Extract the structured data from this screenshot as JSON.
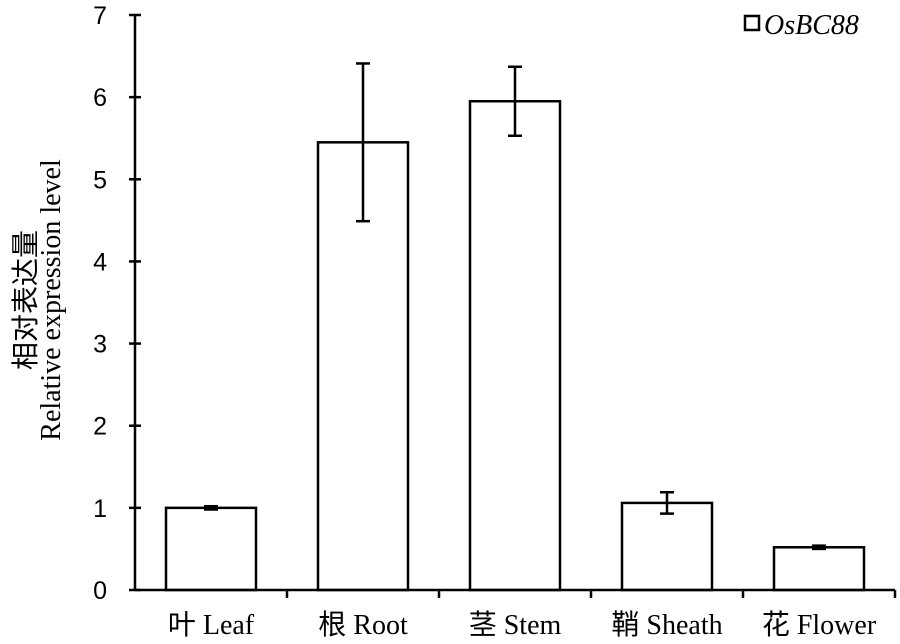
{
  "chart_data": {
    "type": "bar",
    "categories": [
      "叶 Leaf",
      "根 Root",
      "茎 Stem",
      "鞘 Sheath",
      "花 Flower"
    ],
    "series": [
      {
        "name": "OsBC88",
        "values": [
          1.0,
          5.45,
          5.95,
          1.06,
          0.52
        ],
        "error": [
          0.02,
          0.96,
          0.42,
          0.13,
          0.02
        ],
        "fill": "#ffffff",
        "stroke": "#000000"
      }
    ],
    "title": "",
    "xlabel": "",
    "ylabel": {
      "zh": "相对表达量",
      "en": "Relative expression level"
    },
    "ylim": [
      0,
      7
    ],
    "yticks": [
      0,
      1,
      2,
      3,
      4,
      5,
      6,
      7
    ],
    "grid": false,
    "legend": "top-right"
  }
}
